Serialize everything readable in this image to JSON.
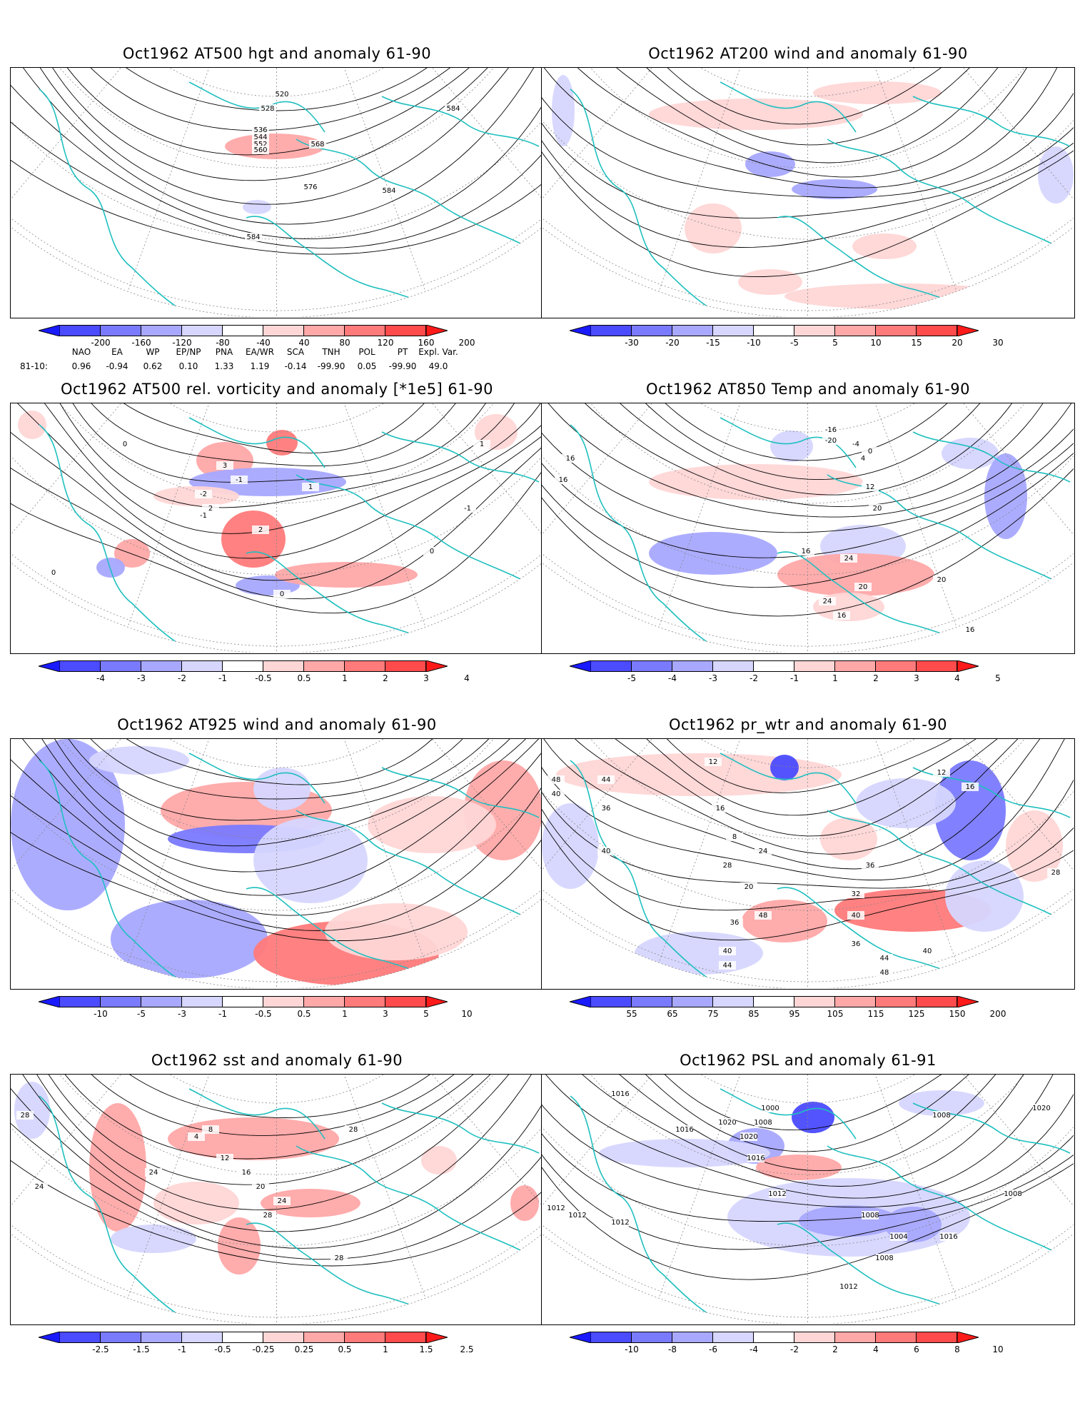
{
  "panels": [
    {
      "id": "hgt500",
      "title": "Oct1962 AT500 hgt and anomaly 61-90",
      "colorbar": {
        "ticks": [
          "-200",
          "-160",
          "-120",
          "-80",
          "-40",
          "40",
          "80",
          "120",
          "160",
          "200"
        ],
        "colors": [
          "#1a1aff",
          "#4b4bff",
          "#7a7aff",
          "#a8a8ff",
          "#d6d6ff",
          "#ffffff",
          "#ffd6d6",
          "#ffa8a8",
          "#ff7a7a",
          "#ff4b4b",
          "#ff1a1a"
        ]
      },
      "contour_labels": [
        "520",
        "528",
        "536",
        "544",
        "552",
        "560",
        "568",
        "576",
        "584",
        "584",
        "584"
      ]
    },
    {
      "id": "wind200",
      "title": "Oct1962 AT200 wind and anomaly 61-90",
      "colorbar": {
        "ticks": [
          "-30",
          "-20",
          "-15",
          "-10",
          "-5",
          "5",
          "10",
          "15",
          "20",
          "30"
        ],
        "colors": [
          "#1a1aff",
          "#4b4bff",
          "#7a7aff",
          "#a8a8ff",
          "#d6d6ff",
          "#ffffff",
          "#ffd6d6",
          "#ffa8a8",
          "#ff7a7a",
          "#ff4b4b",
          "#ff1a1a"
        ]
      },
      "contour_labels": []
    },
    {
      "id": "vort500",
      "title": "Oct1962 AT500 rel. vorticity and anomaly [*1e5] 61-90",
      "colorbar": {
        "ticks": [
          "-4",
          "-3",
          "-2",
          "-1",
          "-0.5",
          "0.5",
          "1",
          "2",
          "3",
          "4"
        ],
        "colors": [
          "#1a1aff",
          "#4b4bff",
          "#7a7aff",
          "#a8a8ff",
          "#d6d6ff",
          "#ffffff",
          "#ffd6d6",
          "#ffa8a8",
          "#ff7a7a",
          "#ff4b4b",
          "#ff1a1a"
        ]
      },
      "contour_labels": [
        "0",
        "0",
        "0",
        "-1",
        "-1",
        "1",
        "2",
        "3",
        "-2",
        "2",
        "-1",
        "1",
        "0"
      ]
    },
    {
      "id": "temp850",
      "title": "Oct1962 AT850 Temp and anomaly 61-90",
      "colorbar": {
        "ticks": [
          "-5",
          "-4",
          "-3",
          "-2",
          "-1",
          "1",
          "2",
          "3",
          "4",
          "5"
        ],
        "colors": [
          "#1a1aff",
          "#4b4bff",
          "#7a7aff",
          "#a8a8ff",
          "#d6d6ff",
          "#ffffff",
          "#ffd6d6",
          "#ffa8a8",
          "#ff7a7a",
          "#ff4b4b",
          "#ff1a1a"
        ]
      },
      "contour_labels": [
        "16",
        "16",
        "-16",
        "-20",
        "0",
        "-4",
        "4",
        "12",
        "20",
        "16",
        "24",
        "20",
        "24",
        "16",
        "20",
        "16"
      ]
    },
    {
      "id": "wind925",
      "title": "Oct1962 AT925 wind and anomaly 61-90",
      "colorbar": {
        "ticks": [
          "-10",
          "-5",
          "-3",
          "-1",
          "-0.5",
          "0.5",
          "1",
          "3",
          "5",
          "10"
        ],
        "colors": [
          "#1a1aff",
          "#4b4bff",
          "#7a7aff",
          "#a8a8ff",
          "#d6d6ff",
          "#ffffff",
          "#ffd6d6",
          "#ffa8a8",
          "#ff7a7a",
          "#ff4b4b",
          "#ff1a1a"
        ]
      },
      "contour_labels": []
    },
    {
      "id": "prwtr",
      "title": "Oct1962 pr_wtr and anomaly 61-90",
      "colorbar": {
        "ticks": [
          "55",
          "65",
          "75",
          "85",
          "95",
          "105",
          "115",
          "125",
          "150",
          "200"
        ],
        "colors": [
          "#1a1aff",
          "#4b4bff",
          "#7a7aff",
          "#a8a8ff",
          "#d6d6ff",
          "#ffffff",
          "#ffd6d6",
          "#ffa8a8",
          "#ff7a7a",
          "#ff4b4b",
          "#ff1a1a"
        ]
      },
      "contour_labels": [
        "48",
        "40",
        "44",
        "36",
        "40",
        "12",
        "16",
        "8",
        "24",
        "20",
        "28",
        "36",
        "40",
        "44",
        "48",
        "36",
        "32",
        "40",
        "36",
        "44",
        "48",
        "40",
        "12",
        "16",
        "28"
      ]
    },
    {
      "id": "sst",
      "title": "Oct1962 sst and anomaly 61-90",
      "colorbar": {
        "ticks": [
          "-2.5",
          "-1.5",
          "-1",
          "-0.5",
          "-0.25",
          "0.25",
          "0.5",
          "1",
          "1.5",
          "2.5"
        ],
        "colors": [
          "#1a1aff",
          "#4b4bff",
          "#7a7aff",
          "#a8a8ff",
          "#d6d6ff",
          "#ffffff",
          "#ffd6d6",
          "#ffa8a8",
          "#ff7a7a",
          "#ff4b4b",
          "#ff1a1a"
        ]
      },
      "contour_labels": [
        "28",
        "24",
        "24",
        "4",
        "8",
        "12",
        "16",
        "20",
        "24",
        "28",
        "28",
        "28"
      ]
    },
    {
      "id": "psl",
      "title": "Oct1962 PSL and anomaly 61-91",
      "colorbar": {
        "ticks": [
          "-10",
          "-8",
          "-6",
          "-4",
          "-2",
          "2",
          "4",
          "6",
          "8",
          "10"
        ],
        "colors": [
          "#1a1aff",
          "#4b4bff",
          "#7a7aff",
          "#a8a8ff",
          "#d6d6ff",
          "#ffffff",
          "#ffd6d6",
          "#ffa8a8",
          "#ff7a7a",
          "#ff4b4b",
          "#ff1a1a"
        ]
      },
      "contour_labels": [
        "1016",
        "1012",
        "1000",
        "1008",
        "1016",
        "1020",
        "1020",
        "1016",
        "1012",
        "1012",
        "1012",
        "1008",
        "1004",
        "1008",
        "1012",
        "1016",
        "1008",
        "1020",
        "1008"
      ]
    }
  ],
  "index_table": {
    "headers": [
      "NAO",
      "EA",
      "WP",
      "EP/NP",
      "PNA",
      "EA/WR",
      "SCA",
      "TNH",
      "POL",
      "PT",
      "Expl. Var."
    ],
    "row_label": "81-10:",
    "values": [
      "0.96",
      "-0.94",
      "0.62",
      "0.10",
      "1.33",
      "1.19",
      "-0.14",
      "-99.90",
      "0.05",
      "-99.90",
      "49.0"
    ]
  },
  "colors": {
    "land_outline": "#1fbfbf",
    "contour": "#000000",
    "grid": "#888888"
  }
}
